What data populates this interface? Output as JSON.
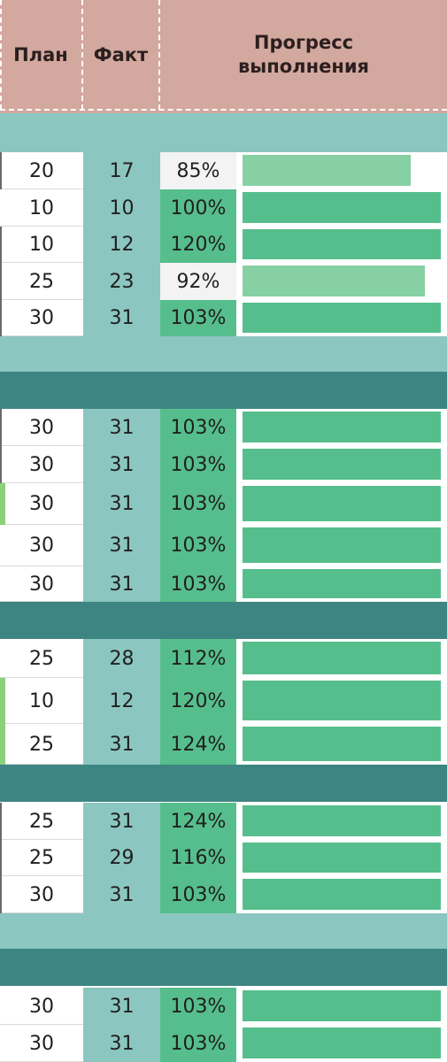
{
  "header": {
    "plan": "План",
    "fakt": "Факт",
    "progress_line1": "Прогресс",
    "progress_line2": "выполнения"
  },
  "rows": [
    {
      "plan": "20",
      "fakt": "17",
      "pct": "85%",
      "level": 0.85
    },
    {
      "plan": "10",
      "fakt": "10",
      "pct": "100%",
      "level": 1.0
    },
    {
      "plan": "10",
      "fakt": "12",
      "pct": "120%",
      "level": 1.0
    },
    {
      "plan": "25",
      "fakt": "23",
      "pct": "92%",
      "level": 0.92
    },
    {
      "plan": "30",
      "fakt": "31",
      "pct": "103%",
      "level": 1.0
    },
    {
      "plan": "30",
      "fakt": "31",
      "pct": "103%",
      "level": 1.0
    },
    {
      "plan": "30",
      "fakt": "31",
      "pct": "103%",
      "level": 1.0
    },
    {
      "plan": "30",
      "fakt": "31",
      "pct": "103%",
      "level": 1.0
    },
    {
      "plan": "30",
      "fakt": "31",
      "pct": "103%",
      "level": 1.0
    },
    {
      "plan": "30",
      "fakt": "31",
      "pct": "103%",
      "level": 1.0
    },
    {
      "plan": "25",
      "fakt": "28",
      "pct": "112%",
      "level": 1.0
    },
    {
      "plan": "10",
      "fakt": "12",
      "pct": "120%",
      "level": 1.0
    },
    {
      "plan": "25",
      "fakt": "31",
      "pct": "124%",
      "level": 1.0
    },
    {
      "plan": "25",
      "fakt": "31",
      "pct": "124%",
      "level": 1.0
    },
    {
      "plan": "25",
      "fakt": "29",
      "pct": "116%",
      "level": 1.0
    },
    {
      "plan": "30",
      "fakt": "31",
      "pct": "103%",
      "level": 1.0
    },
    {
      "plan": "30",
      "fakt": "31",
      "pct": "103%",
      "level": 1.0
    },
    {
      "plan": "30",
      "fakt": "31",
      "pct": "103%",
      "level": 1.0
    }
  ],
  "colors": {
    "header": "#d3a89e",
    "band_light": "#8cc6c0",
    "band_dark": "#3d8582",
    "complete": "#56be8c",
    "incomplete_bar": "#86d0a4",
    "incomplete_cell": "#f3f3f3"
  }
}
